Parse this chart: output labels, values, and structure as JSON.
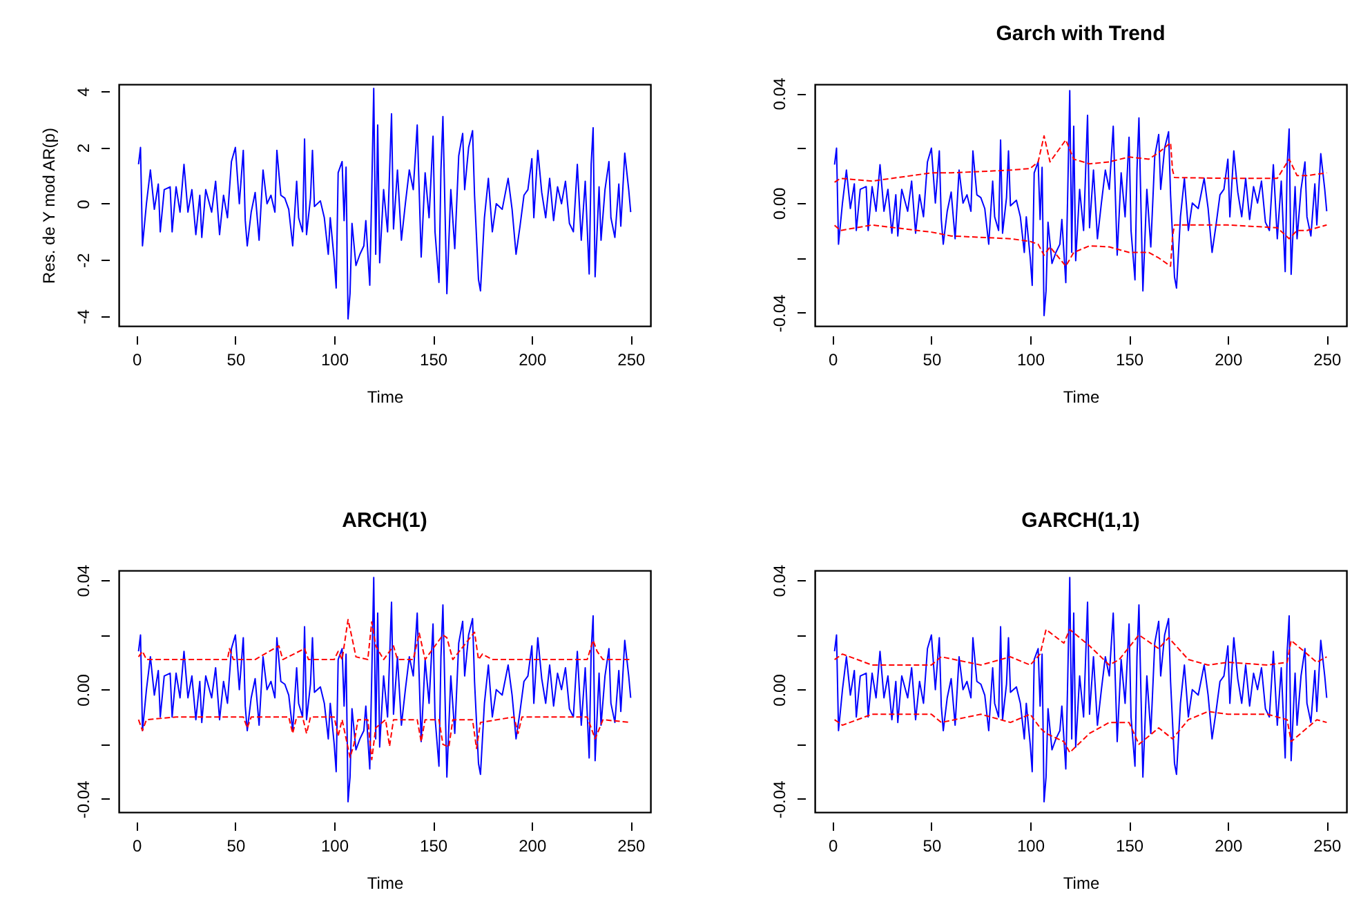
{
  "chart_data": [
    {
      "type": "line",
      "ylabel": "Res. de Y mod AR(p)",
      "xlabel": "Time",
      "xlim": [
        -9,
        260
      ],
      "xticks": [
        0,
        50,
        100,
        150,
        200,
        250
      ],
      "ylim": [
        -4.35,
        4.25
      ],
      "yticks": [
        -4,
        -2,
        0,
        2,
        4
      ],
      "marker": "none",
      "series": [
        {
          "color": "#0000ff",
          "line_style": "solid",
          "x": [
            1,
            2,
            3,
            5,
            7,
            9,
            11,
            12,
            14,
            17,
            18,
            20,
            22,
            24,
            26,
            28,
            30,
            32,
            33,
            35,
            38,
            40,
            42,
            44,
            46,
            48,
            50,
            52,
            54,
            55,
            56,
            58,
            60,
            62,
            64,
            66,
            68,
            70,
            71,
            73,
            75,
            77,
            79,
            81,
            82,
            84,
            85,
            86,
            88,
            89,
            90,
            93,
            95,
            97,
            98,
            100,
            101,
            102,
            104,
            105,
            106,
            107,
            108,
            109,
            111,
            113,
            115,
            116,
            118,
            119,
            120,
            121,
            122,
            123,
            125,
            127,
            129,
            130,
            132,
            134,
            136,
            138,
            140,
            142,
            144,
            146,
            148,
            150,
            151,
            153,
            154,
            155,
            157,
            159,
            161,
            163,
            165,
            166,
            168,
            170,
            171,
            173,
            174,
            176,
            178,
            180,
            182,
            185,
            188,
            190,
            192,
            194,
            196,
            198,
            200,
            201,
            203,
            205,
            207,
            209,
            211,
            213,
            215,
            217,
            219,
            221,
            223,
            225,
            227,
            229,
            230,
            231,
            232,
            234,
            235,
            237,
            239,
            240,
            242,
            244,
            245,
            247,
            249,
            250
          ],
          "values": [
            1.4,
            2.0,
            -1.5,
            0.0,
            1.2,
            -0.2,
            0.7,
            -1.0,
            0.5,
            0.6,
            -1.0,
            0.6,
            -0.3,
            1.4,
            -0.3,
            0.5,
            -1.1,
            0.3,
            -1.2,
            0.5,
            -0.3,
            0.8,
            -1.1,
            0.3,
            -0.5,
            1.5,
            2.0,
            0.0,
            1.9,
            -0.6,
            -1.5,
            -0.3,
            0.4,
            -1.3,
            1.2,
            0.0,
            0.3,
            -0.3,
            1.9,
            0.3,
            0.2,
            -0.2,
            -1.5,
            0.8,
            -0.5,
            -1.0,
            2.3,
            -1.1,
            0.2,
            1.9,
            -0.1,
            0.1,
            -0.5,
            -1.8,
            -0.5,
            -2.0,
            -3.0,
            1.1,
            1.5,
            -0.6,
            1.3,
            -4.1,
            -3.2,
            -0.7,
            -2.2,
            -1.8,
            -1.5,
            -0.6,
            -2.9,
            0.5,
            4.1,
            -1.8,
            2.8,
            -2.1,
            0.5,
            -1.0,
            3.2,
            -0.9,
            1.2,
            -1.3,
            0.0,
            1.2,
            0.5,
            2.8,
            -1.9,
            1.1,
            -0.5,
            2.4,
            -1.0,
            -2.8,
            1.2,
            3.1,
            -3.2,
            0.5,
            -1.6,
            1.7,
            2.5,
            0.5,
            2.0,
            2.6,
            0.3,
            -2.7,
            -3.1,
            -0.5,
            0.9,
            -1.0,
            0.0,
            -0.2,
            0.9,
            -0.2,
            -1.8,
            -0.8,
            0.3,
            0.5,
            1.6,
            -0.5,
            1.9,
            0.4,
            -0.5,
            0.9,
            -0.6,
            0.6,
            0.0,
            0.8,
            -0.7,
            -1.0,
            1.4,
            -1.3,
            0.8,
            -2.5,
            1.4,
            2.7,
            -2.6,
            0.6,
            -1.3,
            0.5,
            1.5,
            -0.5,
            -1.2,
            0.7,
            -0.8,
            1.8,
            0.5,
            -0.3
          ]
        }
      ]
    },
    {
      "type": "line",
      "title": "Garch with Trend",
      "xlabel": "Time",
      "xlim": [
        -9,
        260
      ],
      "xticks": [
        0,
        50,
        100,
        150,
        200,
        250
      ],
      "ylim": [
        -0.0448,
        0.0433
      ],
      "yticks": [
        -0.04,
        {
          "value": -0.02,
          "label": null
        },
        {
          "value": 0,
          "label": "0.00"
        },
        {
          "value": 0.02,
          "label": null
        },
        0.04
      ],
      "marker": "none",
      "series": [
        {
          "color": "#0000ff",
          "line_style": "solid",
          "x": [
            1,
            2,
            3,
            5,
            7,
            9,
            11,
            12,
            14,
            17,
            18,
            20,
            22,
            24,
            26,
            28,
            30,
            32,
            33,
            35,
            38,
            40,
            42,
            44,
            46,
            48,
            50,
            52,
            54,
            55,
            56,
            58,
            60,
            62,
            64,
            66,
            68,
            70,
            71,
            73,
            75,
            77,
            79,
            81,
            82,
            84,
            85,
            86,
            88,
            89,
            90,
            93,
            95,
            97,
            98,
            100,
            101,
            102,
            104,
            105,
            106,
            107,
            108,
            109,
            111,
            113,
            115,
            116,
            118,
            119,
            120,
            121,
            122,
            123,
            125,
            127,
            129,
            130,
            132,
            134,
            136,
            138,
            140,
            142,
            144,
            146,
            148,
            150,
            151,
            153,
            154,
            155,
            157,
            159,
            161,
            163,
            165,
            166,
            168,
            170,
            171,
            173,
            174,
            176,
            178,
            180,
            182,
            185,
            188,
            190,
            192,
            194,
            196,
            198,
            200,
            201,
            203,
            205,
            207,
            209,
            211,
            213,
            215,
            217,
            219,
            221,
            223,
            225,
            227,
            229,
            230,
            231,
            232,
            234,
            235,
            237,
            239,
            240,
            242,
            244,
            245,
            247,
            249,
            250
          ],
          "values": [
            0.014,
            0.02,
            -0.015,
            0.0,
            0.012,
            -0.002,
            0.007,
            -0.01,
            0.005,
            0.006,
            -0.01,
            0.006,
            -0.003,
            0.014,
            -0.003,
            0.005,
            -0.011,
            0.003,
            -0.012,
            0.005,
            -0.003,
            0.008,
            -0.011,
            0.003,
            -0.005,
            0.015,
            0.02,
            0.0,
            0.019,
            -0.006,
            -0.015,
            -0.003,
            0.004,
            -0.013,
            0.012,
            0.0,
            0.003,
            -0.003,
            0.019,
            0.003,
            0.002,
            -0.002,
            -0.015,
            0.008,
            -0.005,
            -0.01,
            0.023,
            -0.011,
            0.002,
            0.019,
            -0.001,
            0.001,
            -0.005,
            -0.018,
            -0.005,
            -0.02,
            -0.03,
            0.011,
            0.015,
            -0.006,
            0.013,
            -0.041,
            -0.032,
            -0.007,
            -0.022,
            -0.018,
            -0.015,
            -0.006,
            -0.029,
            0.005,
            0.041,
            -0.018,
            0.028,
            -0.021,
            0.005,
            -0.01,
            0.032,
            -0.009,
            0.012,
            -0.013,
            0.0,
            0.012,
            0.005,
            0.028,
            -0.019,
            0.011,
            -0.005,
            0.024,
            -0.01,
            -0.028,
            0.012,
            0.031,
            -0.032,
            0.005,
            -0.016,
            0.017,
            0.025,
            0.005,
            0.02,
            0.026,
            0.003,
            -0.027,
            -0.031,
            -0.005,
            0.009,
            -0.01,
            0.0,
            -0.002,
            0.009,
            -0.002,
            -0.018,
            -0.008,
            0.003,
            0.005,
            0.016,
            -0.005,
            0.019,
            0.004,
            -0.005,
            0.009,
            -0.006,
            0.006,
            0.0,
            0.008,
            -0.007,
            -0.01,
            0.014,
            -0.013,
            0.008,
            -0.025,
            0.014,
            0.027,
            -0.026,
            0.006,
            -0.013,
            0.005,
            0.015,
            -0.005,
            -0.012,
            0.007,
            -0.008,
            0.018,
            0.005,
            -0.003
          ]
        },
        {
          "color": "#ff0000",
          "line_style": "dashed",
          "x": [
            1,
            4,
            20,
            50,
            60,
            90,
            100,
            104,
            107,
            110,
            118,
            122,
            130,
            140,
            150,
            160,
            165,
            171,
            172,
            173,
            200,
            225,
            231,
            235,
            240,
            250
          ],
          "values": [
            0.0076,
            0.009,
            0.008,
            0.011,
            0.011,
            0.012,
            0.0126,
            0.015,
            0.0245,
            0.015,
            0.023,
            0.016,
            0.0143,
            0.015,
            0.0168,
            0.016,
            0.0184,
            0.022,
            0.012,
            0.0093,
            0.009,
            0.009,
            0.016,
            0.01,
            0.01,
            0.011
          ]
        },
        {
          "color": "#ff0000",
          "line_style": "dashed",
          "x": [
            1,
            4,
            20,
            50,
            60,
            90,
            100,
            104,
            107,
            110,
            118,
            122,
            130,
            140,
            150,
            160,
            165,
            171,
            172,
            173,
            200,
            225,
            231,
            235,
            240,
            250
          ],
          "values": [
            -0.0081,
            -0.01,
            -0.008,
            -0.0106,
            -0.012,
            -0.013,
            -0.014,
            -0.015,
            -0.019,
            -0.016,
            -0.023,
            -0.018,
            -0.0156,
            -0.016,
            -0.018,
            -0.018,
            -0.02,
            -0.023,
            -0.012,
            -0.008,
            -0.008,
            -0.009,
            -0.013,
            -0.01,
            -0.01,
            -0.008
          ]
        }
      ]
    },
    {
      "type": "line",
      "title": "ARCH(1)",
      "xlabel": "Time",
      "xlim": [
        -9,
        260
      ],
      "xticks": [
        0,
        50,
        100,
        150,
        200,
        250
      ],
      "ylim": [
        -0.0448,
        0.0436
      ],
      "yticks": [
        -0.04,
        {
          "value": -0.02,
          "label": null
        },
        {
          "value": 0,
          "label": "0.00"
        },
        {
          "value": 0.02,
          "label": null
        },
        0.04
      ],
      "marker": "none",
      "series": [
        {
          "color": "#0000ff",
          "line_style": "solid",
          "x": [
            1,
            2,
            3,
            5,
            7,
            9,
            11,
            12,
            14,
            17,
            18,
            20,
            22,
            24,
            26,
            28,
            30,
            32,
            33,
            35,
            38,
            40,
            42,
            44,
            46,
            48,
            50,
            52,
            54,
            55,
            56,
            58,
            60,
            62,
            64,
            66,
            68,
            70,
            71,
            73,
            75,
            77,
            79,
            81,
            82,
            84,
            85,
            86,
            88,
            89,
            90,
            93,
            95,
            97,
            98,
            100,
            101,
            102,
            104,
            105,
            106,
            107,
            108,
            109,
            111,
            113,
            115,
            116,
            118,
            119,
            120,
            121,
            122,
            123,
            125,
            127,
            129,
            130,
            132,
            134,
            136,
            138,
            140,
            142,
            144,
            146,
            148,
            150,
            151,
            153,
            154,
            155,
            157,
            159,
            161,
            163,
            165,
            166,
            168,
            170,
            171,
            173,
            174,
            176,
            178,
            180,
            182,
            185,
            188,
            190,
            192,
            194,
            196,
            198,
            200,
            201,
            203,
            205,
            207,
            209,
            211,
            213,
            215,
            217,
            219,
            221,
            223,
            225,
            227,
            229,
            230,
            231,
            232,
            234,
            235,
            237,
            239,
            240,
            242,
            244,
            245,
            247,
            249,
            250
          ],
          "values": [
            0.014,
            0.02,
            -0.015,
            0.0,
            0.012,
            -0.002,
            0.007,
            -0.01,
            0.005,
            0.006,
            -0.01,
            0.006,
            -0.003,
            0.014,
            -0.003,
            0.005,
            -0.011,
            0.003,
            -0.012,
            0.005,
            -0.003,
            0.008,
            -0.011,
            0.003,
            -0.005,
            0.015,
            0.02,
            0.0,
            0.019,
            -0.006,
            -0.015,
            -0.003,
            0.004,
            -0.013,
            0.012,
            0.0,
            0.003,
            -0.003,
            0.019,
            0.003,
            0.002,
            -0.002,
            -0.015,
            0.008,
            -0.005,
            -0.01,
            0.023,
            -0.011,
            0.002,
            0.019,
            -0.001,
            0.001,
            -0.005,
            -0.018,
            -0.005,
            -0.02,
            -0.03,
            0.011,
            0.015,
            -0.006,
            0.013,
            -0.041,
            -0.032,
            -0.007,
            -0.022,
            -0.018,
            -0.015,
            -0.006,
            -0.029,
            0.005,
            0.041,
            -0.018,
            0.028,
            -0.021,
            0.005,
            -0.01,
            0.032,
            -0.009,
            0.012,
            -0.013,
            0.0,
            0.012,
            0.005,
            0.028,
            -0.019,
            0.011,
            -0.005,
            0.024,
            -0.01,
            -0.028,
            0.012,
            0.031,
            -0.032,
            0.005,
            -0.016,
            0.017,
            0.025,
            0.005,
            0.02,
            0.026,
            0.003,
            -0.027,
            -0.031,
            -0.005,
            0.009,
            -0.01,
            0.0,
            -0.002,
            0.009,
            -0.002,
            -0.018,
            -0.008,
            0.003,
            0.005,
            0.016,
            -0.005,
            0.019,
            0.004,
            -0.005,
            0.009,
            -0.006,
            0.006,
            0.0,
            0.008,
            -0.007,
            -0.01,
            0.014,
            -0.013,
            0.008,
            -0.025,
            0.014,
            0.027,
            -0.026,
            0.006,
            -0.013,
            0.005,
            0.015,
            -0.005,
            -0.012,
            0.007,
            -0.008,
            0.018,
            0.005,
            -0.003
          ]
        },
        {
          "color": "#ff0000",
          "line_style": "dashed",
          "x": [
            1,
            3,
            5,
            20,
            46,
            47,
            49,
            60,
            72,
            74,
            85,
            87,
            100,
            102,
            104,
            107,
            109,
            111,
            117,
            119,
            121,
            125,
            130,
            132,
            140,
            143,
            146,
            155,
            157,
            160,
            171,
            173,
            175,
            180,
            200,
            228,
            231,
            233,
            236,
            250
          ],
          "values": [
            0.012,
            0.014,
            0.011,
            0.011,
            0.011,
            0.015,
            0.011,
            0.011,
            0.016,
            0.011,
            0.015,
            0.011,
            0.011,
            0.014,
            0.011,
            0.0256,
            0.019,
            0.012,
            0.011,
            0.0248,
            0.016,
            0.011,
            0.016,
            0.011,
            0.011,
            0.0207,
            0.011,
            0.02,
            0.019,
            0.011,
            0.021,
            0.011,
            0.013,
            0.011,
            0.011,
            0.011,
            0.018,
            0.014,
            0.011,
            0.011
          ]
        },
        {
          "color": "#ff0000",
          "line_style": "dashed",
          "x": [
            1,
            3,
            5,
            20,
            54,
            56,
            58,
            77,
            79,
            81,
            84,
            86,
            88,
            100,
            102,
            104,
            108,
            110,
            112,
            117,
            119,
            121,
            126,
            128,
            130,
            142,
            144,
            146,
            153,
            155,
            158,
            160,
            170,
            172,
            174,
            191,
            193,
            195,
            228,
            232,
            236,
            250
          ],
          "values": [
            -0.011,
            -0.015,
            -0.011,
            -0.01,
            -0.01,
            -0.014,
            -0.01,
            -0.01,
            -0.016,
            -0.01,
            -0.01,
            -0.016,
            -0.01,
            -0.01,
            -0.017,
            -0.011,
            -0.0248,
            -0.02,
            -0.011,
            -0.011,
            -0.0256,
            -0.014,
            -0.011,
            -0.0207,
            -0.011,
            -0.011,
            -0.019,
            -0.011,
            -0.011,
            -0.02,
            -0.021,
            -0.011,
            -0.011,
            -0.0215,
            -0.012,
            -0.01,
            -0.016,
            -0.01,
            -0.01,
            -0.018,
            -0.011,
            -0.012
          ]
        }
      ]
    },
    {
      "type": "line",
      "title": "GARCH(1,1)",
      "xlabel": "Time",
      "xlim": [
        -9,
        260
      ],
      "xticks": [
        0,
        50,
        100,
        150,
        200,
        250
      ],
      "ylim": [
        -0.0448,
        0.0436
      ],
      "yticks": [
        -0.04,
        {
          "value": -0.02,
          "label": null
        },
        {
          "value": 0,
          "label": "0.00"
        },
        {
          "value": 0.02,
          "label": null
        },
        0.04
      ],
      "marker": "none",
      "series": [
        {
          "color": "#0000ff",
          "line_style": "solid",
          "x": [
            1,
            2,
            3,
            5,
            7,
            9,
            11,
            12,
            14,
            17,
            18,
            20,
            22,
            24,
            26,
            28,
            30,
            32,
            33,
            35,
            38,
            40,
            42,
            44,
            46,
            48,
            50,
            52,
            54,
            55,
            56,
            58,
            60,
            62,
            64,
            66,
            68,
            70,
            71,
            73,
            75,
            77,
            79,
            81,
            82,
            84,
            85,
            86,
            88,
            89,
            90,
            93,
            95,
            97,
            98,
            100,
            101,
            102,
            104,
            105,
            106,
            107,
            108,
            109,
            111,
            113,
            115,
            116,
            118,
            119,
            120,
            121,
            122,
            123,
            125,
            127,
            129,
            130,
            132,
            134,
            136,
            138,
            140,
            142,
            144,
            146,
            148,
            150,
            151,
            153,
            154,
            155,
            157,
            159,
            161,
            163,
            165,
            166,
            168,
            170,
            171,
            173,
            174,
            176,
            178,
            180,
            182,
            185,
            188,
            190,
            192,
            194,
            196,
            198,
            200,
            201,
            203,
            205,
            207,
            209,
            211,
            213,
            215,
            217,
            219,
            221,
            223,
            225,
            227,
            229,
            230,
            231,
            232,
            234,
            235,
            237,
            239,
            240,
            242,
            244,
            245,
            247,
            249,
            250
          ],
          "values": [
            0.014,
            0.02,
            -0.015,
            0.0,
            0.012,
            -0.002,
            0.007,
            -0.01,
            0.005,
            0.006,
            -0.01,
            0.006,
            -0.003,
            0.014,
            -0.003,
            0.005,
            -0.011,
            0.003,
            -0.012,
            0.005,
            -0.003,
            0.008,
            -0.011,
            0.003,
            -0.005,
            0.015,
            0.02,
            0.0,
            0.019,
            -0.006,
            -0.015,
            -0.003,
            0.004,
            -0.013,
            0.012,
            0.0,
            0.003,
            -0.003,
            0.019,
            0.003,
            0.002,
            -0.002,
            -0.015,
            0.008,
            -0.005,
            -0.01,
            0.023,
            -0.011,
            0.002,
            0.019,
            -0.001,
            0.001,
            -0.005,
            -0.018,
            -0.005,
            -0.02,
            -0.03,
            0.011,
            0.015,
            -0.006,
            0.013,
            -0.041,
            -0.032,
            -0.007,
            -0.022,
            -0.018,
            -0.015,
            -0.006,
            -0.029,
            0.005,
            0.041,
            -0.018,
            0.028,
            -0.021,
            0.005,
            -0.01,
            0.032,
            -0.009,
            0.012,
            -0.013,
            0.0,
            0.012,
            0.005,
            0.028,
            -0.019,
            0.011,
            -0.005,
            0.024,
            -0.01,
            -0.028,
            0.012,
            0.031,
            -0.032,
            0.005,
            -0.016,
            0.017,
            0.025,
            0.005,
            0.02,
            0.026,
            0.003,
            -0.027,
            -0.031,
            -0.005,
            0.009,
            -0.01,
            0.0,
            -0.002,
            0.009,
            -0.002,
            -0.018,
            -0.008,
            0.003,
            0.005,
            0.016,
            -0.005,
            0.019,
            0.004,
            -0.005,
            0.009,
            -0.006,
            0.006,
            0.0,
            0.008,
            -0.007,
            -0.01,
            0.014,
            -0.013,
            0.008,
            -0.025,
            0.014,
            0.027,
            -0.026,
            0.006,
            -0.013,
            0.005,
            0.015,
            -0.005,
            -0.012,
            0.007,
            -0.008,
            0.018,
            0.005,
            -0.003
          ]
        },
        {
          "color": "#ff0000",
          "line_style": "dashed",
          "x": [
            1,
            5,
            20,
            50,
            55,
            75,
            90,
            100,
            105,
            108,
            117,
            120,
            130,
            140,
            145,
            155,
            165,
            170,
            180,
            190,
            200,
            220,
            230,
            232,
            245,
            250
          ],
          "values": [
            0.011,
            0.013,
            0.009,
            0.009,
            0.012,
            0.009,
            0.012,
            0.009,
            0.013,
            0.022,
            0.017,
            0.022,
            0.016,
            0.009,
            0.011,
            0.02,
            0.015,
            0.019,
            0.011,
            0.009,
            0.01,
            0.009,
            0.01,
            0.018,
            0.01,
            0.012
          ]
        },
        {
          "color": "#ff0000",
          "line_style": "dashed",
          "x": [
            1,
            5,
            20,
            50,
            55,
            75,
            90,
            100,
            105,
            108,
            117,
            120,
            130,
            140,
            150,
            155,
            165,
            172,
            180,
            190,
            200,
            220,
            230,
            232,
            245,
            250
          ],
          "values": [
            -0.011,
            -0.013,
            -0.009,
            -0.009,
            -0.012,
            -0.009,
            -0.012,
            -0.009,
            -0.014,
            -0.016,
            -0.019,
            -0.023,
            -0.016,
            -0.012,
            -0.012,
            -0.02,
            -0.014,
            -0.018,
            -0.011,
            -0.008,
            -0.009,
            -0.009,
            -0.011,
            -0.019,
            -0.011,
            -0.012
          ]
        }
      ]
    }
  ]
}
